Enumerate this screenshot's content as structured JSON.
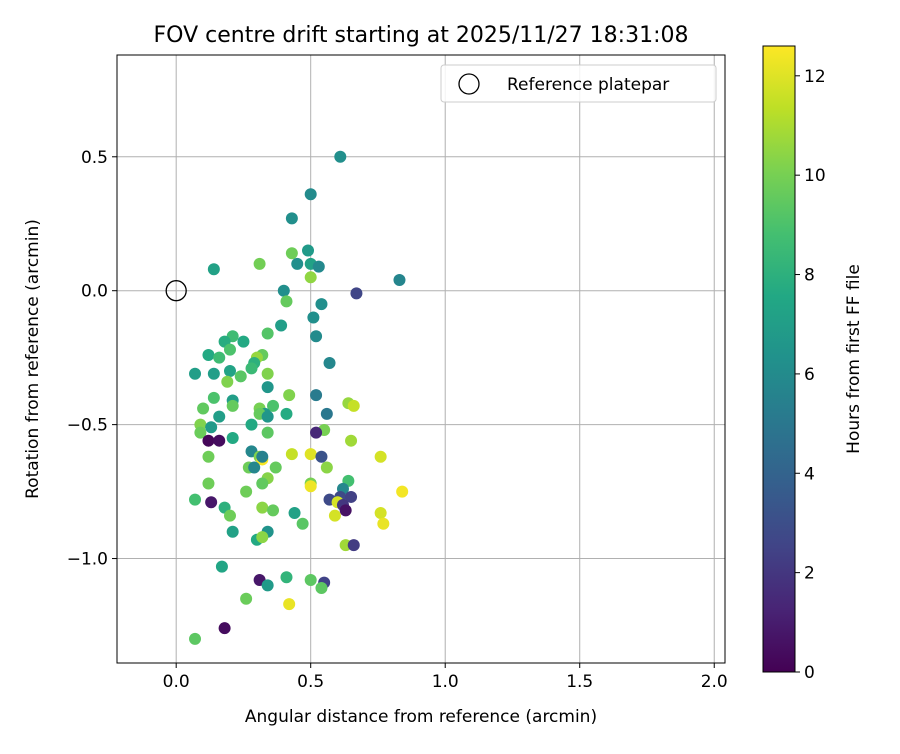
{
  "chart_data": {
    "type": "scatter",
    "title": "FOV centre drift starting at 2025/11/27 18:31:08",
    "xlabel": "Angular distance from reference (arcmin)",
    "ylabel": "Rotation from reference (arcmin)",
    "xlim": [
      -0.22,
      2.04
    ],
    "ylim": [
      -1.39,
      0.88
    ],
    "xticks": [
      0.0,
      0.5,
      1.0,
      1.5,
      2.0
    ],
    "xtick_labels": [
      "0.0",
      "0.5",
      "1.0",
      "1.5",
      "2.0"
    ],
    "yticks": [
      0.5,
      0.0,
      -0.5,
      -1.0
    ],
    "ytick_labels": [
      "0.5",
      "0.0",
      "−0.5",
      "−1.0"
    ],
    "grid": true,
    "legend": {
      "position": "top-right",
      "label": "Reference platepar"
    },
    "reference_point": {
      "x": 0.0,
      "y": 0.0
    },
    "colorbar": {
      "label": "Hours from first FF file",
      "min": 0,
      "max": 12.6,
      "ticks": [
        0,
        2,
        4,
        6,
        8,
        10,
        12
      ],
      "tick_labels": [
        "0",
        "2",
        "4",
        "6",
        "8",
        "10",
        "12"
      ],
      "colormap": "viridis"
    },
    "points": [
      {
        "x": 0.61,
        "y": 0.5,
        "h": 6.2
      },
      {
        "x": 0.5,
        "y": 0.36,
        "h": 6.0
      },
      {
        "x": 0.43,
        "y": 0.27,
        "h": 6.2
      },
      {
        "x": 0.49,
        "y": 0.15,
        "h": 6.8
      },
      {
        "x": 0.43,
        "y": 0.14,
        "h": 9.8
      },
      {
        "x": 0.45,
        "y": 0.1,
        "h": 6.2
      },
      {
        "x": 0.5,
        "y": 0.1,
        "h": 7.2
      },
      {
        "x": 0.53,
        "y": 0.09,
        "h": 5.9
      },
      {
        "x": 0.31,
        "y": 0.1,
        "h": 9.9
      },
      {
        "x": 0.14,
        "y": 0.08,
        "h": 7.2
      },
      {
        "x": 0.5,
        "y": 0.05,
        "h": 10.5
      },
      {
        "x": 0.83,
        "y": 0.04,
        "h": 5.7
      },
      {
        "x": 0.4,
        "y": 0.0,
        "h": 6.2
      },
      {
        "x": 0.67,
        "y": -0.01,
        "h": 2.6
      },
      {
        "x": 0.41,
        "y": -0.04,
        "h": 9.6
      },
      {
        "x": 0.54,
        "y": -0.05,
        "h": 6.2
      },
      {
        "x": 0.51,
        "y": -0.1,
        "h": 6.2
      },
      {
        "x": 0.39,
        "y": -0.13,
        "h": 7.0
      },
      {
        "x": 0.34,
        "y": -0.16,
        "h": 9.2
      },
      {
        "x": 0.52,
        "y": -0.17,
        "h": 6.0
      },
      {
        "x": 0.21,
        "y": -0.17,
        "h": 8.6
      },
      {
        "x": 0.18,
        "y": -0.19,
        "h": 7.8
      },
      {
        "x": 0.25,
        "y": -0.19,
        "h": 7.6
      },
      {
        "x": 0.2,
        "y": -0.22,
        "h": 9.0
      },
      {
        "x": 0.32,
        "y": -0.24,
        "h": 9.6
      },
      {
        "x": 0.12,
        "y": -0.24,
        "h": 7.6
      },
      {
        "x": 0.16,
        "y": -0.25,
        "h": 8.6
      },
      {
        "x": 0.3,
        "y": -0.25,
        "h": 10.6
      },
      {
        "x": 0.57,
        "y": -0.27,
        "h": 5.8
      },
      {
        "x": 0.29,
        "y": -0.27,
        "h": 8.0
      },
      {
        "x": 0.28,
        "y": -0.29,
        "h": 8.5
      },
      {
        "x": 0.2,
        "y": -0.3,
        "h": 7.3
      },
      {
        "x": 0.07,
        "y": -0.31,
        "h": 7.0
      },
      {
        "x": 0.14,
        "y": -0.31,
        "h": 7.0
      },
      {
        "x": 0.34,
        "y": -0.31,
        "h": 10.2
      },
      {
        "x": 0.24,
        "y": -0.32,
        "h": 9.3
      },
      {
        "x": 0.19,
        "y": -0.34,
        "h": 10.2
      },
      {
        "x": 0.34,
        "y": -0.36,
        "h": 6.6
      },
      {
        "x": 0.42,
        "y": -0.39,
        "h": 10.2
      },
      {
        "x": 0.52,
        "y": -0.39,
        "h": 5.2
      },
      {
        "x": 0.14,
        "y": -0.4,
        "h": 9.0
      },
      {
        "x": 0.21,
        "y": -0.41,
        "h": 7.0
      },
      {
        "x": 0.36,
        "y": -0.43,
        "h": 9.0
      },
      {
        "x": 0.64,
        "y": -0.42,
        "h": 10.6
      },
      {
        "x": 0.66,
        "y": -0.43,
        "h": 11.5
      },
      {
        "x": 0.21,
        "y": -0.43,
        "h": 9.6
      },
      {
        "x": 0.1,
        "y": -0.44,
        "h": 9.5
      },
      {
        "x": 0.31,
        "y": -0.44,
        "h": 10.0
      },
      {
        "x": 0.33,
        "y": -0.46,
        "h": 6.8
      },
      {
        "x": 0.41,
        "y": -0.46,
        "h": 7.7
      },
      {
        "x": 0.56,
        "y": -0.46,
        "h": 5.0
      },
      {
        "x": 0.16,
        "y": -0.47,
        "h": 7.0
      },
      {
        "x": 0.31,
        "y": -0.46,
        "h": 9.6
      },
      {
        "x": 0.34,
        "y": -0.47,
        "h": 6.6
      },
      {
        "x": 0.09,
        "y": -0.5,
        "h": 10.2
      },
      {
        "x": 0.28,
        "y": -0.5,
        "h": 7.6
      },
      {
        "x": 0.13,
        "y": -0.51,
        "h": 6.8
      },
      {
        "x": 0.09,
        "y": -0.53,
        "h": 9.7
      },
      {
        "x": 0.34,
        "y": -0.53,
        "h": 9.4
      },
      {
        "x": 0.55,
        "y": -0.52,
        "h": 10.0
      },
      {
        "x": 0.52,
        "y": -0.53,
        "h": 1.4
      },
      {
        "x": 0.12,
        "y": -0.56,
        "h": 0.2
      },
      {
        "x": 0.16,
        "y": -0.56,
        "h": 0.4
      },
      {
        "x": 0.21,
        "y": -0.55,
        "h": 7.6
      },
      {
        "x": 0.65,
        "y": -0.56,
        "h": 10.8
      },
      {
        "x": 0.28,
        "y": -0.6,
        "h": 5.8
      },
      {
        "x": 0.12,
        "y": -0.62,
        "h": 9.8
      },
      {
        "x": 0.43,
        "y": -0.61,
        "h": 11.5
      },
      {
        "x": 0.5,
        "y": -0.61,
        "h": 12.0
      },
      {
        "x": 0.54,
        "y": -0.62,
        "h": 3.2
      },
      {
        "x": 0.76,
        "y": -0.62,
        "h": 11.8
      },
      {
        "x": 0.31,
        "y": -0.62,
        "h": 10.2
      },
      {
        "x": 0.32,
        "y": -0.63,
        "h": 12.5
      },
      {
        "x": 0.32,
        "y": -0.62,
        "h": 5.5
      },
      {
        "x": 0.27,
        "y": -0.66,
        "h": 9.8
      },
      {
        "x": 0.29,
        "y": -0.66,
        "h": 5.8
      },
      {
        "x": 0.37,
        "y": -0.66,
        "h": 9.6
      },
      {
        "x": 0.56,
        "y": -0.66,
        "h": 10.4
      },
      {
        "x": 0.34,
        "y": -0.7,
        "h": 10.3
      },
      {
        "x": 0.12,
        "y": -0.72,
        "h": 9.8
      },
      {
        "x": 0.32,
        "y": -0.72,
        "h": 9.5
      },
      {
        "x": 0.5,
        "y": -0.72,
        "h": 10.0
      },
      {
        "x": 0.5,
        "y": -0.73,
        "h": 12.3
      },
      {
        "x": 0.64,
        "y": -0.71,
        "h": 8.8
      },
      {
        "x": 0.62,
        "y": -0.74,
        "h": 5.8
      },
      {
        "x": 0.26,
        "y": -0.75,
        "h": 9.8
      },
      {
        "x": 0.61,
        "y": -0.77,
        "h": 2.8
      },
      {
        "x": 0.65,
        "y": -0.77,
        "h": 2.4
      },
      {
        "x": 0.84,
        "y": -0.75,
        "h": 12.4
      },
      {
        "x": 0.07,
        "y": -0.78,
        "h": 8.8
      },
      {
        "x": 0.13,
        "y": -0.79,
        "h": 0.8
      },
      {
        "x": 0.57,
        "y": -0.78,
        "h": 2.8
      },
      {
        "x": 0.6,
        "y": -0.79,
        "h": 11.8
      },
      {
        "x": 0.62,
        "y": -0.8,
        "h": 2.0
      },
      {
        "x": 0.63,
        "y": -0.82,
        "h": 0.6
      },
      {
        "x": 0.32,
        "y": -0.81,
        "h": 10.4
      },
      {
        "x": 0.18,
        "y": -0.81,
        "h": 8.0
      },
      {
        "x": 0.36,
        "y": -0.82,
        "h": 9.6
      },
      {
        "x": 0.44,
        "y": -0.83,
        "h": 7.2
      },
      {
        "x": 0.59,
        "y": -0.84,
        "h": 11.8
      },
      {
        "x": 0.76,
        "y": -0.83,
        "h": 11.8
      },
      {
        "x": 0.2,
        "y": -0.84,
        "h": 9.8
      },
      {
        "x": 0.47,
        "y": -0.87,
        "h": 9.3
      },
      {
        "x": 0.77,
        "y": -0.87,
        "h": 12.2
      },
      {
        "x": 0.21,
        "y": -0.9,
        "h": 7.2
      },
      {
        "x": 0.34,
        "y": -0.9,
        "h": 6.4
      },
      {
        "x": 0.3,
        "y": -0.93,
        "h": 7.6
      },
      {
        "x": 0.32,
        "y": -0.92,
        "h": 10.4
      },
      {
        "x": 0.63,
        "y": -0.95,
        "h": 10.8
      },
      {
        "x": 0.66,
        "y": -0.95,
        "h": 2.2
      },
      {
        "x": 0.17,
        "y": -1.03,
        "h": 7.4
      },
      {
        "x": 0.31,
        "y": -1.08,
        "h": 0.8
      },
      {
        "x": 0.41,
        "y": -1.07,
        "h": 8.2
      },
      {
        "x": 0.5,
        "y": -1.08,
        "h": 9.4
      },
      {
        "x": 0.55,
        "y": -1.09,
        "h": 2.5
      },
      {
        "x": 0.54,
        "y": -1.11,
        "h": 9.4
      },
      {
        "x": 0.34,
        "y": -1.1,
        "h": 6.8
      },
      {
        "x": 0.26,
        "y": -1.15,
        "h": 9.7
      },
      {
        "x": 0.42,
        "y": -1.17,
        "h": 12.2
      },
      {
        "x": 0.18,
        "y": -1.26,
        "h": 0.4
      },
      {
        "x": 0.07,
        "y": -1.3,
        "h": 9.4
      }
    ]
  }
}
